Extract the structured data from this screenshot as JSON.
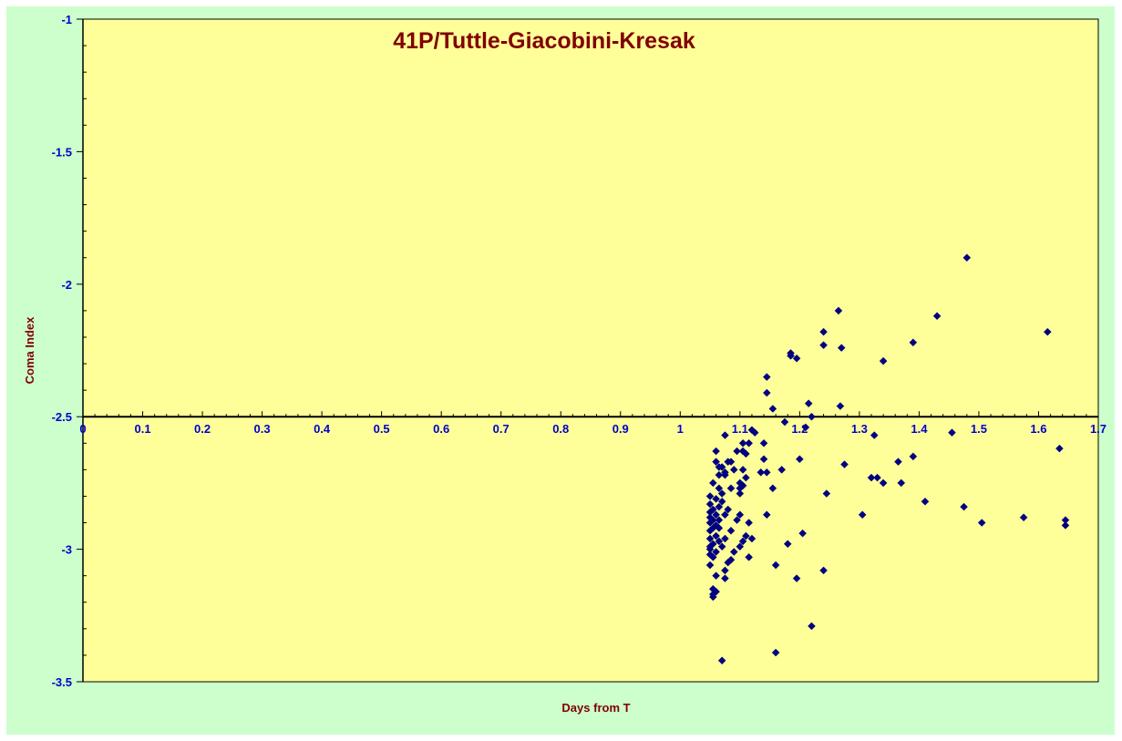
{
  "chart_data": {
    "type": "scatter",
    "title": "41P/Tuttle-Giacobini-Kresak",
    "xlabel": "Days from  T",
    "ylabel": "Coma Index",
    "xlim": [
      0,
      1.7
    ],
    "ylim": [
      -3.5,
      -1
    ],
    "x_axis_crosses_y_at": -2.5,
    "x_ticks": [
      "0",
      "0.1",
      "0.2",
      "0.3",
      "0.4",
      "0.5",
      "0.6",
      "0.7",
      "0.8",
      "0.9",
      "1",
      "1.1",
      "1.2",
      "1.3",
      "1.4",
      "1.5",
      "1.6",
      "1.7"
    ],
    "y_ticks": [
      "-1",
      "-1.5",
      "-2",
      "-2.5",
      "-3",
      "-3.5"
    ],
    "grid": false,
    "legend": "none",
    "colors": {
      "plot_area": "#ffff99",
      "chart_area": "#ccffcc",
      "marker": "#000080",
      "tick_labels": "#0000cc",
      "titles": "#800000"
    },
    "points": [
      [
        1.48,
        -1.9
      ],
      [
        1.265,
        -2.1
      ],
      [
        1.43,
        -2.12
      ],
      [
        1.615,
        -2.18
      ],
      [
        1.24,
        -2.18
      ],
      [
        1.39,
        -2.22
      ],
      [
        1.24,
        -2.23
      ],
      [
        1.27,
        -2.24
      ],
      [
        1.185,
        -2.26
      ],
      [
        1.185,
        -2.27
      ],
      [
        1.195,
        -2.28
      ],
      [
        1.34,
        -2.29
      ],
      [
        1.145,
        -2.35
      ],
      [
        1.145,
        -2.41
      ],
      [
        1.215,
        -2.45
      ],
      [
        1.268,
        -2.46
      ],
      [
        1.155,
        -2.47
      ],
      [
        1.22,
        -2.5
      ],
      [
        1.175,
        -2.52
      ],
      [
        1.21,
        -2.54
      ],
      [
        1.12,
        -2.55
      ],
      [
        1.125,
        -2.56
      ],
      [
        1.325,
        -2.57
      ],
      [
        1.455,
        -2.56
      ],
      [
        1.075,
        -2.57
      ],
      [
        1.105,
        -2.6
      ],
      [
        1.115,
        -2.6
      ],
      [
        1.14,
        -2.6
      ],
      [
        1.635,
        -2.62
      ],
      [
        1.06,
        -2.63
      ],
      [
        1.095,
        -2.63
      ],
      [
        1.105,
        -2.63
      ],
      [
        1.11,
        -2.64
      ],
      [
        1.39,
        -2.65
      ],
      [
        1.14,
        -2.66
      ],
      [
        1.2,
        -2.66
      ],
      [
        1.08,
        -2.67
      ],
      [
        1.085,
        -2.67
      ],
      [
        1.06,
        -2.67
      ],
      [
        1.365,
        -2.67
      ],
      [
        1.275,
        -2.68
      ],
      [
        1.065,
        -2.69
      ],
      [
        1.07,
        -2.69
      ],
      [
        1.09,
        -2.7
      ],
      [
        1.105,
        -2.7
      ],
      [
        1.17,
        -2.7
      ],
      [
        1.075,
        -2.71
      ],
      [
        1.135,
        -2.71
      ],
      [
        1.145,
        -2.71
      ],
      [
        1.065,
        -2.72
      ],
      [
        1.075,
        -2.72
      ],
      [
        1.32,
        -2.73
      ],
      [
        1.33,
        -2.73
      ],
      [
        1.11,
        -2.73
      ],
      [
        1.1,
        -2.75
      ],
      [
        1.055,
        -2.75
      ],
      [
        1.34,
        -2.75
      ],
      [
        1.37,
        -2.75
      ],
      [
        1.105,
        -2.76
      ],
      [
        1.1,
        -2.77
      ],
      [
        1.065,
        -2.77
      ],
      [
        1.085,
        -2.77
      ],
      [
        1.155,
        -2.77
      ],
      [
        1.07,
        -2.79
      ],
      [
        1.1,
        -2.79
      ],
      [
        1.245,
        -2.79
      ],
      [
        1.05,
        -2.8
      ],
      [
        1.06,
        -2.81
      ],
      [
        1.07,
        -2.82
      ],
      [
        1.41,
        -2.82
      ],
      [
        1.05,
        -2.83
      ],
      [
        1.065,
        -2.84
      ],
      [
        1.475,
        -2.84
      ],
      [
        1.055,
        -2.85
      ],
      [
        1.08,
        -2.85
      ],
      [
        1.05,
        -2.86
      ],
      [
        1.06,
        -2.87
      ],
      [
        1.305,
        -2.87
      ],
      [
        1.075,
        -2.87
      ],
      [
        1.1,
        -2.87
      ],
      [
        1.145,
        -2.87
      ],
      [
        1.05,
        -2.88
      ],
      [
        1.575,
        -2.88
      ],
      [
        1.055,
        -2.89
      ],
      [
        1.065,
        -2.89
      ],
      [
        1.095,
        -2.89
      ],
      [
        1.645,
        -2.89
      ],
      [
        1.05,
        -2.9
      ],
      [
        1.115,
        -2.9
      ],
      [
        1.505,
        -2.9
      ],
      [
        1.06,
        -2.91
      ],
      [
        1.645,
        -2.91
      ],
      [
        1.055,
        -2.92
      ],
      [
        1.065,
        -2.92
      ],
      [
        1.05,
        -2.93
      ],
      [
        1.085,
        -2.93
      ],
      [
        1.205,
        -2.94
      ],
      [
        1.06,
        -2.95
      ],
      [
        1.11,
        -2.95
      ],
      [
        1.05,
        -2.96
      ],
      [
        1.075,
        -2.96
      ],
      [
        1.12,
        -2.96
      ],
      [
        1.065,
        -2.97
      ],
      [
        1.105,
        -2.97
      ],
      [
        1.055,
        -2.98
      ],
      [
        1.05,
        -2.99
      ],
      [
        1.07,
        -2.99
      ],
      [
        1.1,
        -2.99
      ],
      [
        1.18,
        -2.98
      ],
      [
        1.05,
        -3.0
      ],
      [
        1.06,
        -3.01
      ],
      [
        1.09,
        -3.01
      ],
      [
        1.05,
        -3.02
      ],
      [
        1.055,
        -3.03
      ],
      [
        1.115,
        -3.03
      ],
      [
        1.085,
        -3.04
      ],
      [
        1.08,
        -3.05
      ],
      [
        1.05,
        -3.06
      ],
      [
        1.16,
        -3.06
      ],
      [
        1.075,
        -3.08
      ],
      [
        1.24,
        -3.08
      ],
      [
        1.06,
        -3.1
      ],
      [
        1.075,
        -3.11
      ],
      [
        1.195,
        -3.11
      ],
      [
        1.055,
        -3.15
      ],
      [
        1.06,
        -3.16
      ],
      [
        1.055,
        -3.17
      ],
      [
        1.055,
        -3.18
      ],
      [
        1.22,
        -3.29
      ],
      [
        1.16,
        -3.39
      ],
      [
        1.07,
        -3.42
      ]
    ]
  }
}
